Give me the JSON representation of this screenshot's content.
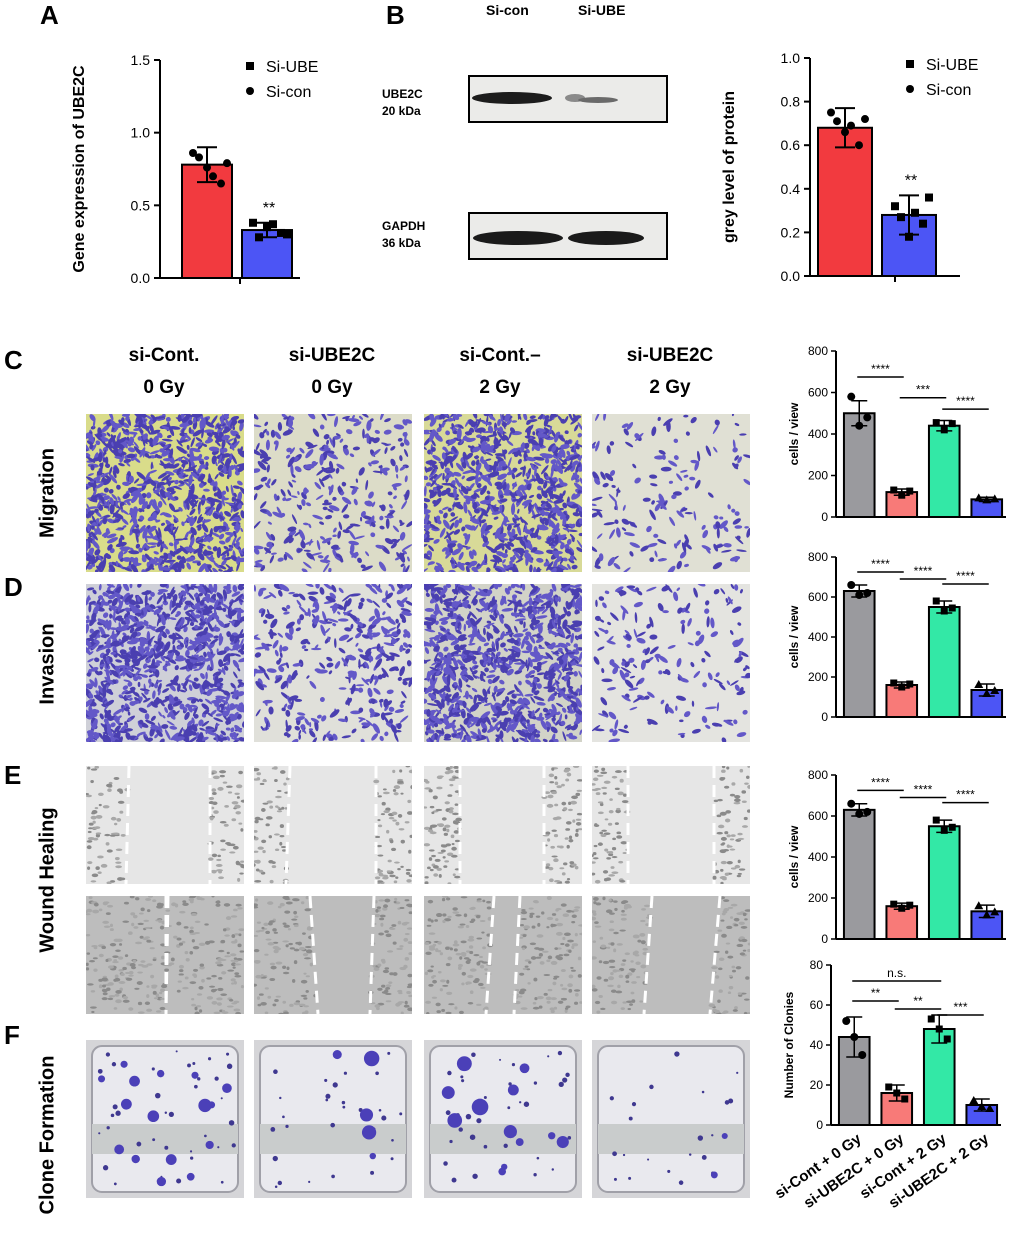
{
  "panels": {
    "A": "A",
    "B": "B",
    "C": "C",
    "D": "D",
    "E": "E",
    "F": "F"
  },
  "panelA": {
    "chart_data": {
      "type": "bar",
      "categories": [
        "Si-con",
        "Si-UBE"
      ],
      "values": [
        0.78,
        0.33
      ],
      "errors": [
        0.12,
        0.05
      ],
      "points": [
        [
          0.86,
          0.76,
          0.65,
          0.83,
          0.7,
          0.79
        ],
        [
          0.38,
          0.35,
          0.31,
          0.28,
          0.37,
          0.3
        ]
      ],
      "colors": [
        "#f23a3f",
        "#4c55f5"
      ],
      "ylabel": "Gene expression of UBE2C",
      "ylim": [
        0,
        1.5
      ],
      "yticks": [
        "0.0",
        "0.5",
        "1.0",
        "1.5"
      ],
      "legend": [
        "Si-UBE",
        "Si-con"
      ],
      "legend_position": "top-right",
      "significance": "**"
    }
  },
  "panelB": {
    "lanes": [
      "Si-con",
      "Si-UBE"
    ],
    "bands": [
      {
        "name": "UBE2C",
        "size": "20 kDa"
      },
      {
        "name": "GAPDH",
        "size": "36 kDa"
      }
    ],
    "chart_data": {
      "type": "bar",
      "categories": [
        "Si-con",
        "Si-UBE"
      ],
      "values": [
        0.68,
        0.28
      ],
      "errors": [
        0.09,
        0.09
      ],
      "points": [
        [
          0.75,
          0.66,
          0.6,
          0.71,
          0.69,
          0.72
        ],
        [
          0.32,
          0.18,
          0.24,
          0.27,
          0.29,
          0.36
        ]
      ],
      "colors": [
        "#f23a3f",
        "#4c55f5"
      ],
      "ylabel": "grey level of protein",
      "ylim": [
        0,
        1.0
      ],
      "yticks": [
        "0.0",
        "0.2",
        "0.4",
        "0.6",
        "0.8",
        "1.0"
      ],
      "legend": [
        "Si-UBE",
        "Si-con"
      ],
      "legend_position": "top-right",
      "significance": "**"
    }
  },
  "columns": [
    {
      "line1": "si-Cont.",
      "line2": "0 Gy"
    },
    {
      "line1": "si-UBE2C",
      "line2": "0 Gy"
    },
    {
      "line1": "si-Cont.–",
      "line2": "2 Gy"
    },
    {
      "line1": "si-UBE2C",
      "line2": "2 Gy"
    }
  ],
  "rows": {
    "C": "Migration",
    "D": "Invasion",
    "E": "Wound Healing",
    "F": "Clone Formation"
  },
  "group_colors": [
    "#9a9a9e",
    "#f87a78",
    "#33e8a6",
    "#4c55f5"
  ],
  "group_labels": [
    "si-Cont + 0 Gy",
    "si-UBE2C + 0 Gy",
    "si-Cont + 2 Gy",
    "si-UBE2C + 2 Gy"
  ],
  "chart_data": [
    {
      "id": "C",
      "type": "bar",
      "ylabel": "cells / view",
      "ylim": [
        0,
        800
      ],
      "yticks": [
        "0",
        "200",
        "400",
        "600",
        "800"
      ],
      "values": [
        500,
        120,
        440,
        85
      ],
      "errors": [
        60,
        15,
        25,
        10
      ],
      "points": [
        [
          580,
          440,
          480
        ],
        [
          130,
          105,
          125
        ],
        [
          455,
          420,
          450
        ],
        [
          90,
          80,
          85
        ]
      ],
      "sig": [
        {
          "a": 0,
          "b": 1,
          "label": "****",
          "y": 675
        },
        {
          "a": 1,
          "b": 2,
          "label": "***",
          "y": 575
        },
        {
          "a": 2,
          "b": 3,
          "label": "****",
          "y": 520
        }
      ]
    },
    {
      "id": "D",
      "type": "bar",
      "ylabel": "cells / view",
      "ylim": [
        0,
        800
      ],
      "yticks": [
        "0",
        "200",
        "400",
        "600",
        "800"
      ],
      "values": [
        630,
        160,
        550,
        135
      ],
      "errors": [
        30,
        15,
        30,
        30
      ],
      "points": [
        [
          660,
          610,
          620
        ],
        [
          170,
          150,
          165
        ],
        [
          580,
          530,
          545
        ],
        [
          160,
          115,
          130
        ]
      ],
      "sig": [
        {
          "a": 0,
          "b": 1,
          "label": "****",
          "y": 725
        },
        {
          "a": 1,
          "b": 2,
          "label": "****",
          "y": 690
        },
        {
          "a": 2,
          "b": 3,
          "label": "****",
          "y": 665
        }
      ]
    },
    {
      "id": "E",
      "type": "bar",
      "ylabel": "cells / view",
      "ylim": [
        0,
        800
      ],
      "yticks": [
        "0",
        "200",
        "400",
        "600",
        "800"
      ],
      "values": [
        630,
        160,
        550,
        135
      ],
      "errors": [
        30,
        15,
        30,
        30
      ],
      "points": [
        [
          660,
          610,
          620
        ],
        [
          170,
          150,
          165
        ],
        [
          580,
          530,
          545
        ],
        [
          160,
          115,
          130
        ]
      ],
      "sig": [
        {
          "a": 0,
          "b": 1,
          "label": "****",
          "y": 725
        },
        {
          "a": 1,
          "b": 2,
          "label": "****",
          "y": 690
        },
        {
          "a": 2,
          "b": 3,
          "label": "****",
          "y": 665
        }
      ]
    },
    {
      "id": "F",
      "type": "bar",
      "ylabel": "Number of Clonies",
      "ylim": [
        0,
        80
      ],
      "yticks": [
        "0",
        "20",
        "40",
        "60",
        "80"
      ],
      "values": [
        44,
        16,
        48,
        10
      ],
      "errors": [
        10,
        4,
        7,
        3
      ],
      "points": [
        [
          52,
          44,
          35
        ],
        [
          19,
          16,
          13
        ],
        [
          53,
          48,
          43
        ],
        [
          12,
          9,
          8
        ]
      ],
      "sig": [
        {
          "a": 0,
          "b": 2,
          "label": "n.s.",
          "y": 72
        },
        {
          "a": 0,
          "b": 1,
          "label": "**",
          "y": 62
        },
        {
          "a": 1,
          "b": 2,
          "label": "**",
          "y": 58
        },
        {
          "a": 2,
          "b": 3,
          "label": "***",
          "y": 55
        }
      ],
      "xlabels": [
        "si-Cont + 0 Gy",
        "si-UBE2C + 0 Gy",
        "si-Cont + 2 Gy",
        "si-UBE2C + 2 Gy"
      ]
    }
  ]
}
